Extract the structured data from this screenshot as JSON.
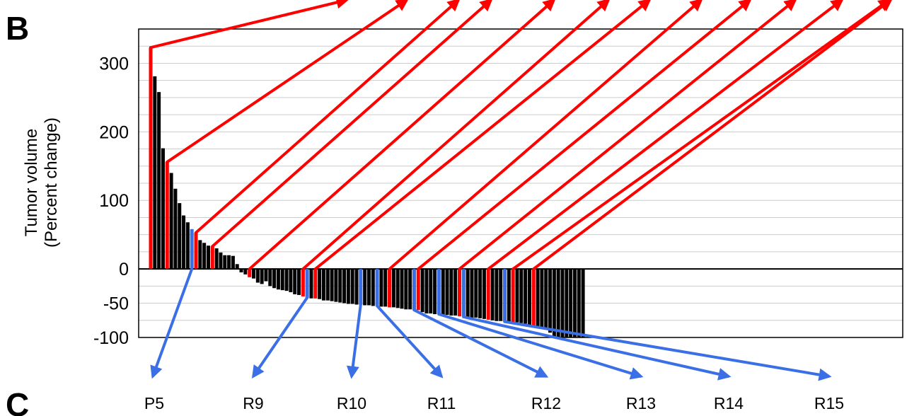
{
  "panel_labels": {
    "current": "B",
    "next": "C"
  },
  "chart_data": {
    "type": "bar",
    "title": "",
    "ylabel_line1": "Tumor volume",
    "ylabel_line2": "(Percent change)",
    "ylim": [
      -100,
      350
    ],
    "yticks": [
      300,
      200,
      100,
      0,
      -50,
      -100
    ],
    "ytick_labels": [
      "300",
      "200",
      "100",
      "0",
      "-50",
      "-100"
    ],
    "grid": true,
    "values": [
      323,
      281,
      258,
      176,
      156,
      140,
      117,
      96,
      78,
      68,
      58,
      53,
      42,
      38,
      34,
      33,
      30,
      24,
      20,
      20,
      19,
      7,
      -5,
      -8,
      -12,
      -14,
      -20,
      -22,
      -18,
      -25,
      -28,
      -30,
      -31,
      -32,
      -34,
      -37,
      -38,
      -40,
      -42,
      -43,
      -43,
      -44,
      -46,
      -46,
      -47,
      -48,
      -49,
      -50,
      -51,
      -51,
      -52,
      -52,
      -53,
      -53,
      -54,
      -54,
      -55,
      -55,
      -56,
      -56,
      -57,
      -58,
      -59,
      -59,
      -60,
      -60,
      -63,
      -65,
      -65,
      -66,
      -66,
      -67,
      -67,
      -68,
      -68,
      -69,
      -70,
      -70,
      -71,
      -71,
      -72,
      -73,
      -74,
      -75,
      -76,
      -76,
      -77,
      -77,
      -78,
      -78,
      -79,
      -80,
      -82,
      -83,
      -85,
      -87,
      -88,
      -93,
      -100,
      -100,
      -100,
      -100,
      -100,
      -100,
      -100,
      -100
    ],
    "highlight_red": [
      0,
      4,
      11,
      15,
      24,
      37,
      40,
      58,
      65,
      75,
      82,
      88,
      93
    ],
    "highlight_blue": [
      10,
      38,
      51,
      55,
      64,
      70,
      76,
      86
    ],
    "colors": {
      "bar": "#000000",
      "red": "#ff0000",
      "blue": "#3b6fe6",
      "grid": "#cccccc",
      "axis": "#000000"
    }
  },
  "blue_labels": [
    "P5",
    "R9",
    "R10",
    "R11",
    "R12",
    "R13",
    "R14",
    "R15"
  ]
}
